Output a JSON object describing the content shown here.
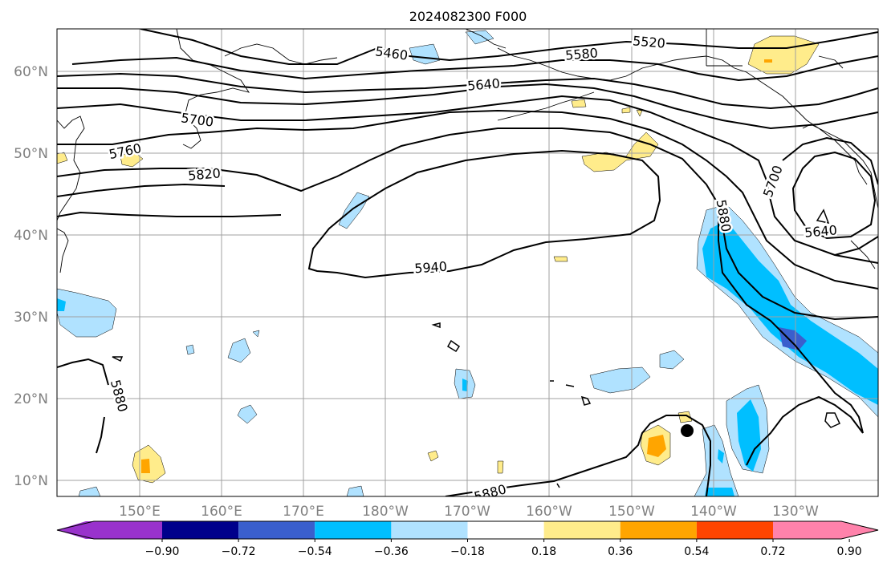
{
  "title": "2024082300 F000",
  "lat_labels": [
    "60°N",
    "50°N",
    "40°N",
    "30°N",
    "20°N",
    "10°N"
  ],
  "lon_labels": [
    "150°E",
    "160°E",
    "170°E",
    "180°W",
    "170°W",
    "160°W",
    "150°W",
    "140°W",
    "130°W"
  ],
  "contour_labels": [
    "5460",
    "5520",
    "5580",
    "5640",
    "5700",
    "5760",
    "5820",
    "5880",
    "5940",
    "5700",
    "5640",
    "5880",
    "5880"
  ],
  "colorbar": {
    "ticks": [
      "−0.90",
      "−0.72",
      "−0.54",
      "−0.36",
      "−0.18",
      "0.18",
      "0.36",
      "0.54",
      "0.72",
      "0.90"
    ],
    "colors": [
      "#9932cc",
      "#00008b",
      "#3a5fcd",
      "#00bfff",
      "#b0e2ff",
      "#ffffff",
      "#ffec8b",
      "#ffa500",
      "#ff4500",
      "#b22222",
      "#ff82ab"
    ]
  },
  "colors": {
    "land_outline": "#000000",
    "grid": "#a0a0a0",
    "contour": "#000000"
  }
}
